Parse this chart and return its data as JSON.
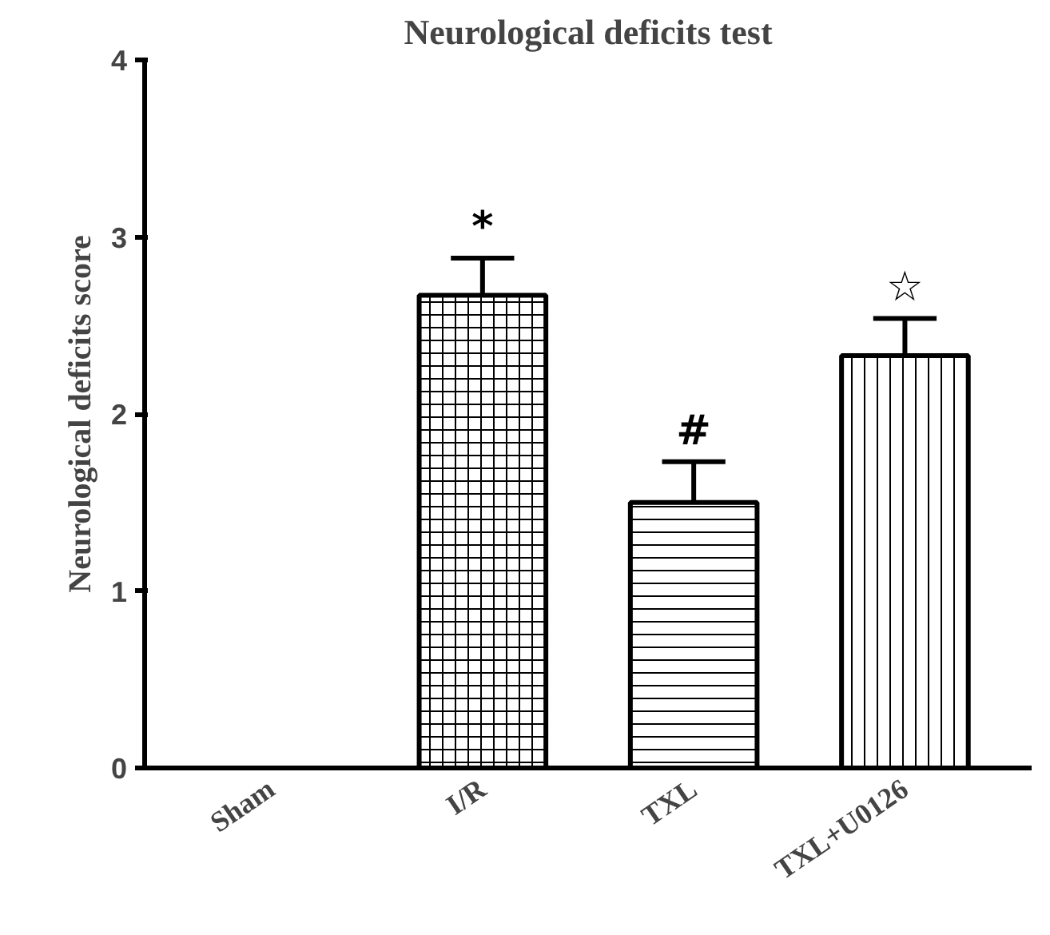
{
  "chart_data": {
    "type": "bar",
    "title": "Neurological deficits test",
    "ylabel": "Neurological deficits score",
    "categories": [
      "Sham",
      "I/R",
      "TXL",
      "TXL+U0126"
    ],
    "values": [
      0,
      2.67,
      1.5,
      2.33
    ],
    "errors": [
      null,
      [
        2.67,
        2.88
      ],
      [
        1.5,
        1.73
      ],
      [
        2.33,
        2.54
      ]
    ],
    "color": "#000000",
    "ylim": [
      0,
      4
    ],
    "yticks": [
      0,
      1,
      2,
      3,
      4
    ],
    "grid": false,
    "annotations": [
      {
        "text": "*",
        "x": "I/R",
        "y": 2.88
      },
      {
        "text": "#",
        "x": "TXL",
        "y": 1.73
      },
      {
        "text": "☆",
        "x": "TXL+U0126",
        "y": 2.54
      }
    ]
  }
}
